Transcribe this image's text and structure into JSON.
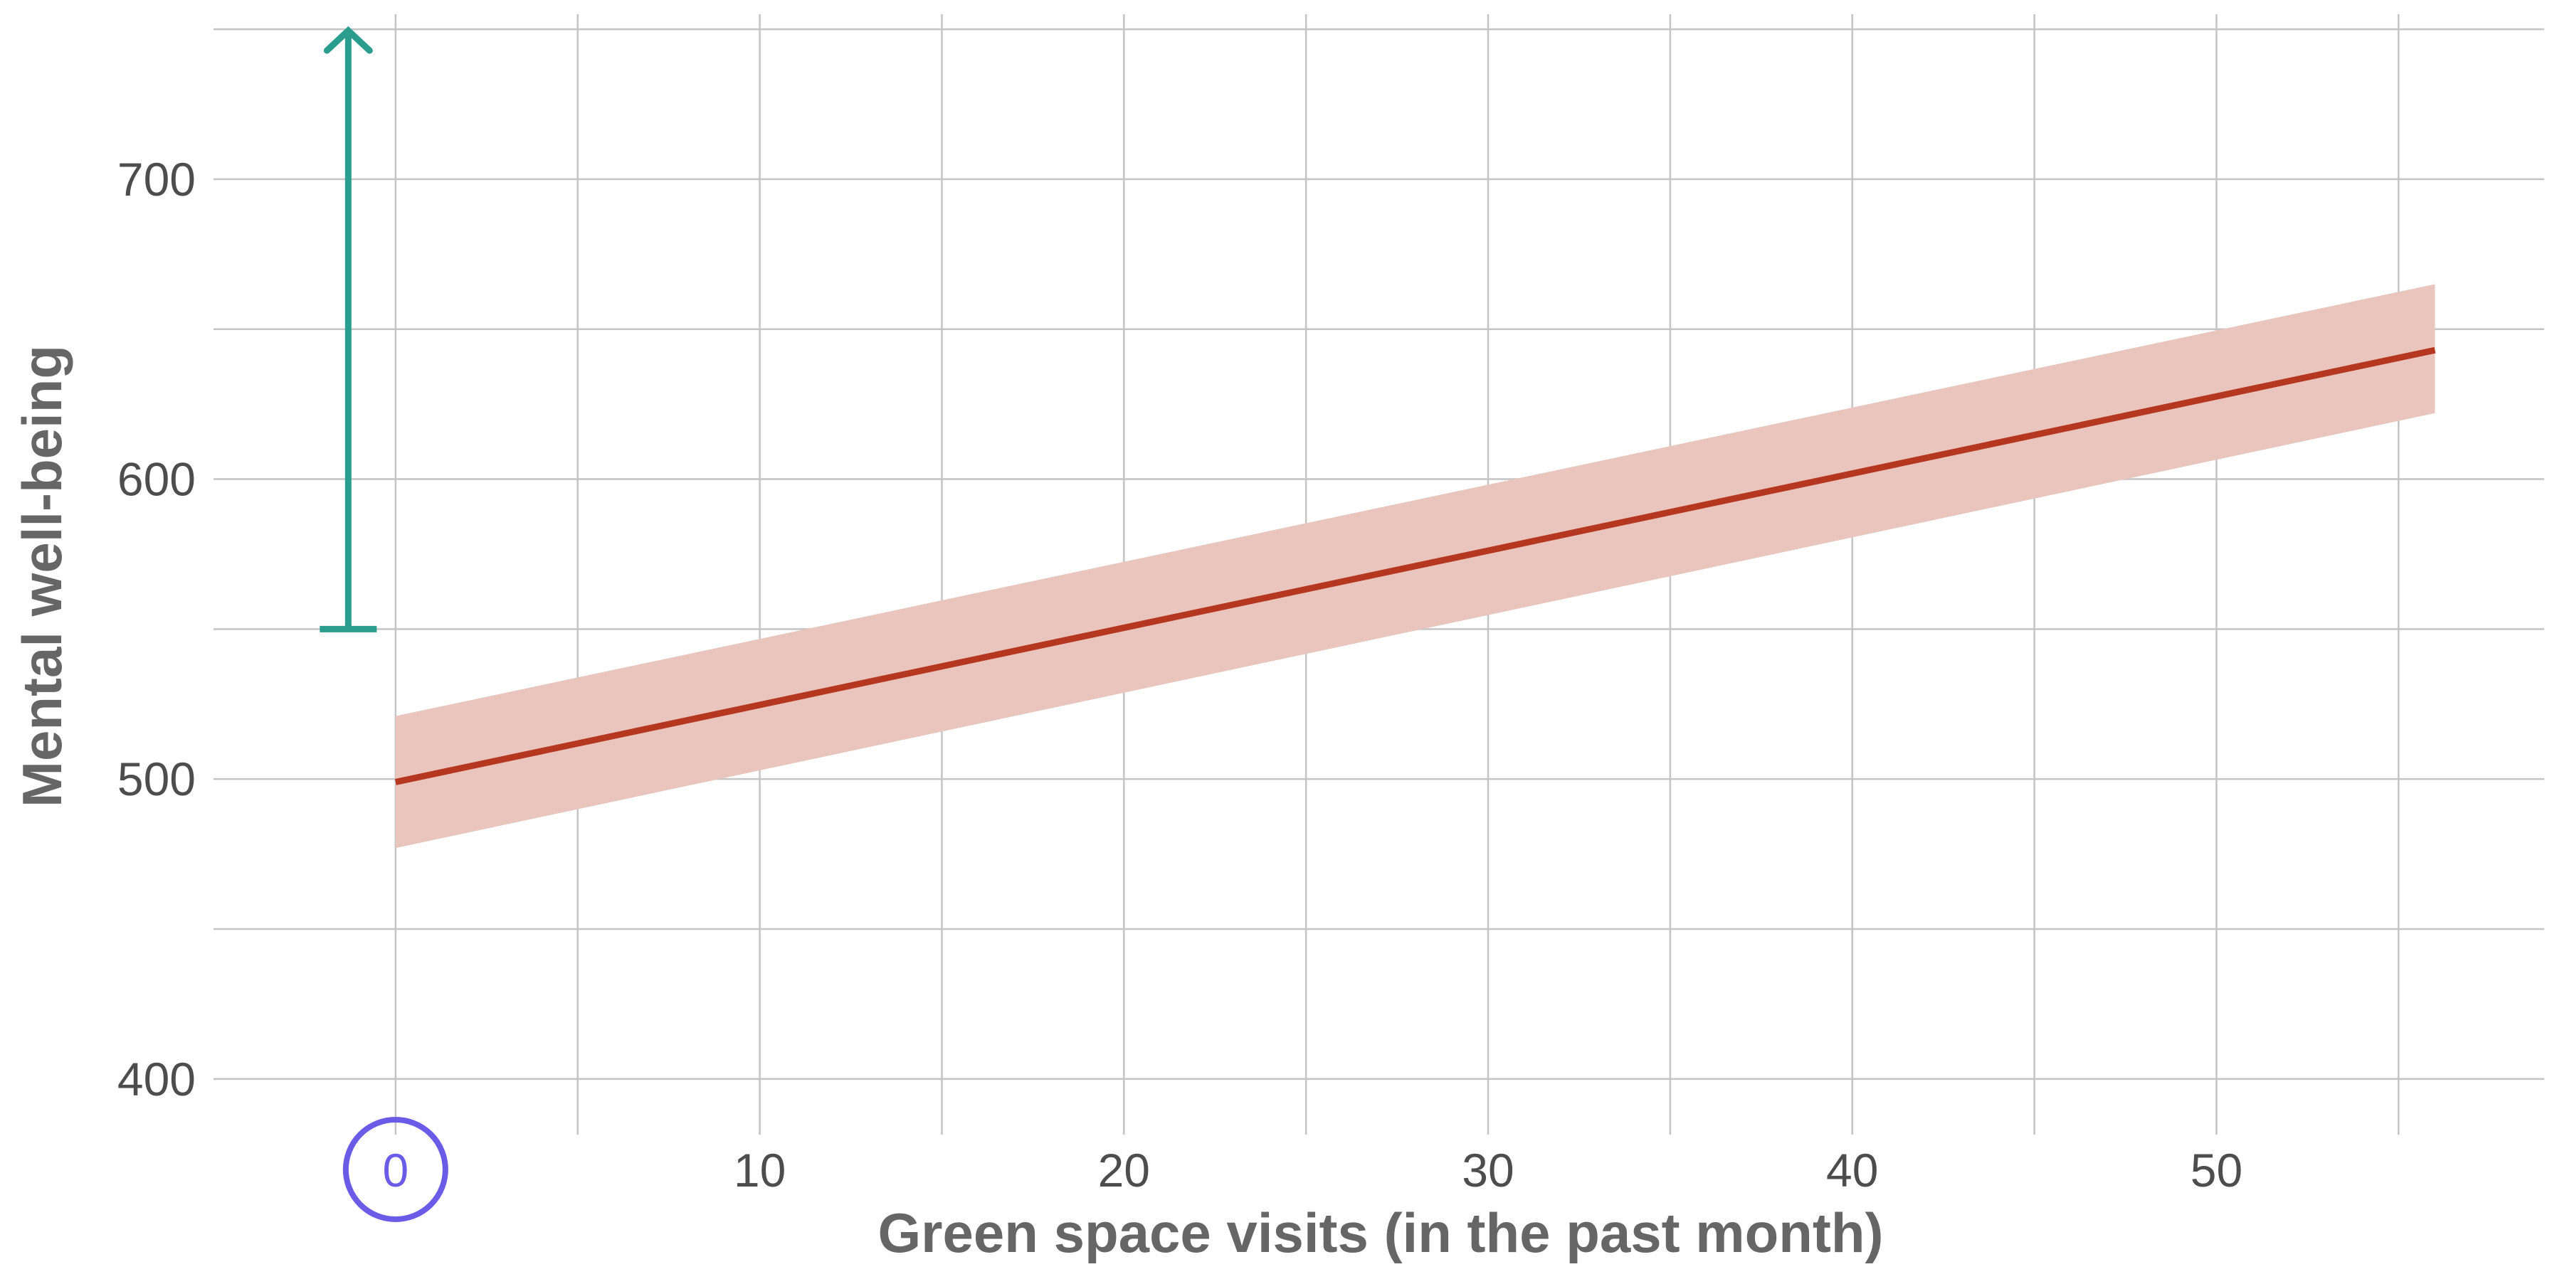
{
  "chart_data": {
    "type": "line",
    "title": "",
    "xlabel": "Green space visits (in the past month)",
    "ylabel": "Mental well-being",
    "xlim": [
      -5,
      59
    ],
    "ylim": [
      385,
      755
    ],
    "x_ticks": [
      0,
      10,
      20,
      30,
      40,
      50
    ],
    "x_tick_labels": [
      "0",
      "10",
      "20",
      "30",
      "40",
      "50"
    ],
    "x_minor_gridlines": [
      5,
      15,
      25,
      35,
      45,
      55
    ],
    "y_ticks": [
      400,
      500,
      600,
      700
    ],
    "y_tick_labels": [
      "400",
      "500",
      "600",
      "700"
    ],
    "y_minor_gridlines": [
      450,
      550,
      650,
      750
    ],
    "grid": true,
    "legend": "none",
    "series": [
      {
        "x": [
          0,
          56
        ],
        "y": [
          499,
          643
        ],
        "ci_lower": [
          477,
          622
        ],
        "ci_upper": [
          521,
          665
        ],
        "line_color": "#b5371f",
        "band_color": "#e9c5be"
      }
    ],
    "annotations": {
      "arrow": {
        "x": -1.3,
        "y_from": 550,
        "y_to": 750,
        "color": "#2a9d8f"
      },
      "highlight_circle": {
        "tick": "0",
        "color": "#6b5ce7"
      }
    }
  }
}
